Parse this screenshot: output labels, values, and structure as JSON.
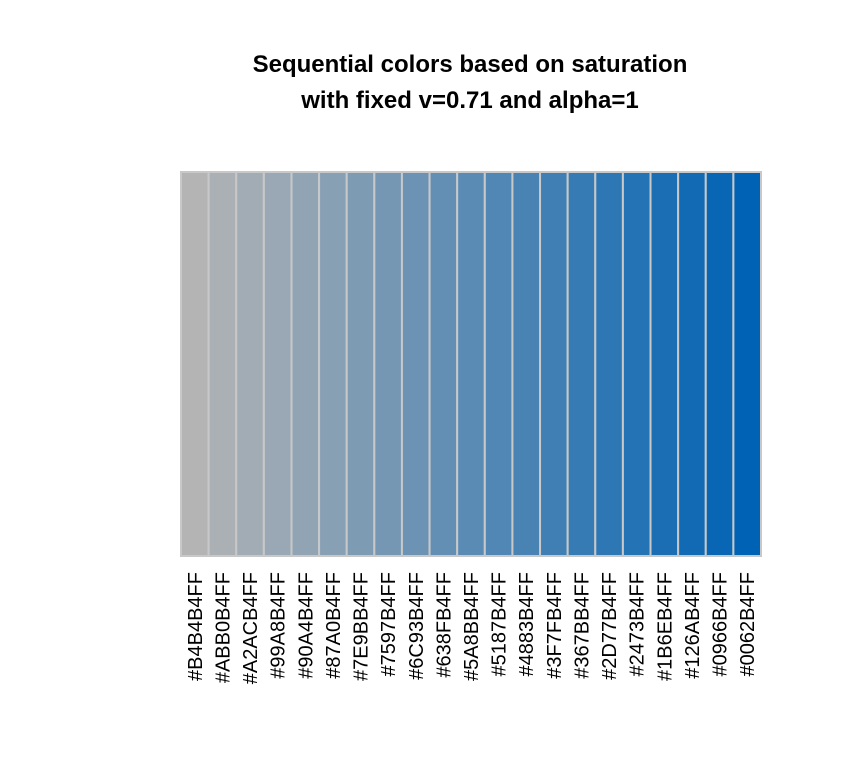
{
  "chart_data": {
    "type": "bar",
    "title": "Sequential colors based on saturation",
    "subtitle": "with fixed v=0.71 and alpha=1",
    "xlabel": "",
    "ylabel": "",
    "categories": [
      "#B4B4B4FF",
      "#ABB0B4FF",
      "#A2ACB4FF",
      "#99A8B4FF",
      "#90A4B4FF",
      "#87A0B4FF",
      "#7E9BB4FF",
      "#7597B4FF",
      "#6C93B4FF",
      "#638FB4FF",
      "#5A8BB4FF",
      "#5187B4FF",
      "#4883B4FF",
      "#3F7FB4FF",
      "#367BB4FF",
      "#2D77B4FF",
      "#2473B4FF",
      "#1B6EB4FF",
      "#126AB4FF",
      "#0966B4FF",
      "#0062B4FF"
    ],
    "values": [
      1,
      1,
      1,
      1,
      1,
      1,
      1,
      1,
      1,
      1,
      1,
      1,
      1,
      1,
      1,
      1,
      1,
      1,
      1,
      1,
      1
    ],
    "colors": [
      "#B4B4B4",
      "#ABB0B4",
      "#A2ACB4",
      "#99A8B4",
      "#90A4B4",
      "#87A0B4",
      "#7E9BB4",
      "#7597B4",
      "#6C93B4",
      "#638FB4",
      "#5A8BB4",
      "#5187B4",
      "#4883B4",
      "#3F7FB4",
      "#367BB4",
      "#2D77B4",
      "#2473B4",
      "#1B6EB4",
      "#126AB4",
      "#0966B4",
      "#0062B4"
    ],
    "ylim": [
      0,
      1
    ],
    "grid": false,
    "legend": "none",
    "border_color": "#C8C8C8"
  }
}
